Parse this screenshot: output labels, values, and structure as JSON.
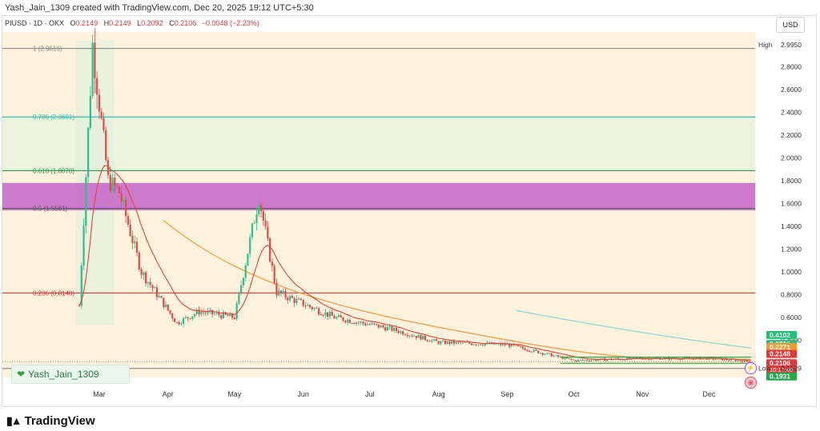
{
  "caption": "Yash_Jain_1309 created with TradingView.com, Dec 20, 2025 19:12 UTC+5:30",
  "legend": {
    "symbol": "PIUSD · 1D · OKX",
    "open_label": "O",
    "open": "0.2149",
    "high_label": "H",
    "high": "0.2149",
    "low_label": "L",
    "low": "0.2092",
    "close_label": "C",
    "close": "0.2106",
    "change": "−0.0048 (−2.23%)"
  },
  "currency_button": "USD",
  "watermark_user": "Yash_Jain_1309",
  "footer_brand": "TradingView",
  "colors": {
    "background_zone": "#fdf3dc",
    "fib_1": "#8a8a8a",
    "fib_0786": "#2fbfb3",
    "fib_0618": "#2e9a52",
    "fib_05": "#555555",
    "fib_0236": "#e0303a",
    "fib_0": "#8a8a8a",
    "supply_zone": "#c664c9",
    "up_candle": "#2fbf8a",
    "down_candle": "#e04a4a",
    "ema_fast": "#e0453f",
    "ema_slow": "#f5a050",
    "ema_long": "#8fd6d0",
    "support_box": "#2ea84a"
  },
  "chart_data": {
    "type": "candlestick",
    "symbol": "PIUSD",
    "timeframe": "1D",
    "exchange": "OKX",
    "currency": "USD",
    "ylim": [
      0.05,
      3.1
    ],
    "y_ticks": [
      0.4,
      0.6,
      0.8,
      1.0,
      1.2,
      1.4,
      1.6,
      1.8,
      2.0,
      2.2,
      2.4,
      2.6,
      2.8
    ],
    "y_tick_labels": [
      "0.4000",
      "0.6000",
      "0.8000",
      "1.0000",
      "1.2000",
      "1.4000",
      "1.6000",
      "1.8000",
      "2.0000",
      "2.2000",
      "2.4000",
      "2.6000",
      "2.8000"
    ],
    "x_ticks": [
      {
        "label": "Mar",
        "date": "2025-03-01"
      },
      {
        "label": "Apr",
        "date": "2025-04-01"
      },
      {
        "label": "May",
        "date": "2025-05-01"
      },
      {
        "label": "Jun",
        "date": "2025-06-01"
      },
      {
        "label": "Jul",
        "date": "2025-07-01"
      },
      {
        "label": "Aug",
        "date": "2025-08-01"
      },
      {
        "label": "Sep",
        "date": "2025-09-01"
      },
      {
        "label": "Oct",
        "date": "2025-10-01"
      },
      {
        "label": "Nov",
        "date": "2025-11-01"
      },
      {
        "label": "Dec",
        "date": "2025-12-01"
      }
    ],
    "fib_levels": [
      {
        "label": "1 (2.9616)",
        "value": 2.9616,
        "color": "#8a8a8a"
      },
      {
        "label": "0.786 (2.3601)",
        "value": 2.3601,
        "color": "#2fbfb3"
      },
      {
        "label": "0.618 (1.8878)",
        "value": 1.8878,
        "color": "#2e9a52"
      },
      {
        "label": "0.5 (1.5561)",
        "value": 1.5561,
        "color": "#555555"
      },
      {
        "label": "0.236 (0.8140)",
        "value": 0.814,
        "color": "#e0303a"
      },
      {
        "label": "0 (0.1506)",
        "value": 0.1506,
        "color": "#8a8a8a"
      }
    ],
    "supply_zone": {
      "from": 1.54,
      "to": 1.78
    },
    "support_box": {
      "from": 0.196,
      "to": 0.25,
      "start": "2025-09-25",
      "end": "2025-12-20"
    },
    "price_markers": [
      {
        "label": "High",
        "value": "2.9950",
        "y": 2.995,
        "style": "plain"
      },
      {
        "value": "0.4102",
        "y": 0.4102,
        "bg": "#22c07a",
        "fg": "#ffffff"
      },
      {
        "value": "0.2816",
        "y": 0.2816,
        "bg": "#22c07a",
        "fg": "#ffffff"
      },
      {
        "value": "0.2271",
        "y": 0.2271,
        "bg": "#f59a2f",
        "fg": "#ffffff"
      },
      {
        "value": "0.2148",
        "y": 0.2148,
        "bg": "#e03a3a",
        "fg": "#ffffff"
      },
      {
        "value": "0.2106",
        "y": 0.2106,
        "bg": "#e03a3a",
        "fg": "#ffffff",
        "sub": "10:17:40"
      },
      {
        "value": "0.1931",
        "y": 0.1931,
        "bg": "#22a84a",
        "fg": "#ffffff"
      },
      {
        "label": "Low",
        "value": "0.1529",
        "y": 0.1529,
        "style": "plain"
      }
    ],
    "ohlc_last": {
      "open": 0.2149,
      "high": 0.2149,
      "low": 0.2092,
      "close": 0.2106,
      "change": -0.0048,
      "change_pct": -2.23
    },
    "key_prices": [
      {
        "date": "2025-02-20",
        "value": 0.7
      },
      {
        "date": "2025-02-26",
        "value": 2.995
      },
      {
        "date": "2025-03-05",
        "value": 1.8
      },
      {
        "date": "2025-03-10",
        "value": 1.7
      },
      {
        "date": "2025-03-20",
        "value": 1.0
      },
      {
        "date": "2025-04-05",
        "value": 0.55
      },
      {
        "date": "2025-04-15",
        "value": 0.65
      },
      {
        "date": "2025-05-01",
        "value": 0.6
      },
      {
        "date": "2025-05-12",
        "value": 1.66
      },
      {
        "date": "2025-05-20",
        "value": 0.82
      },
      {
        "date": "2025-06-15",
        "value": 0.6
      },
      {
        "date": "2025-07-10",
        "value": 0.5
      },
      {
        "date": "2025-08-01",
        "value": 0.38
      },
      {
        "date": "2025-09-01",
        "value": 0.36
      },
      {
        "date": "2025-10-01",
        "value": 0.22
      },
      {
        "date": "2025-11-01",
        "value": 0.24
      },
      {
        "date": "2025-12-01",
        "value": 0.24
      },
      {
        "date": "2025-12-20",
        "value": 0.2106
      }
    ]
  }
}
